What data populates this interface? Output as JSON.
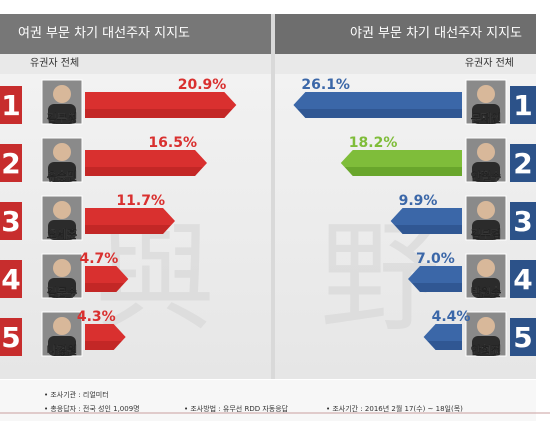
{
  "header": {
    "left_title": "여권 부문 차기 대선주자 지지도",
    "right_title": "야권 부문 차기 대선주자 지지도",
    "left_sub": "유권자 전체",
    "right_sub": "유권자 전체"
  },
  "watermark": {
    "left_char": "與",
    "right_char": "野"
  },
  "footer": {
    "line1": "• 조사기관 : 리얼미터",
    "line2a": "• 총응답자 : 전국 성인 1,009명",
    "line2b": "• 조사방법 : 유무선 RDD 자동응답",
    "line2c": "• 조사기간 : 2016년 2월 17(수) ~ 18일(목)"
  },
  "colors": {
    "ruling": "#d9302f",
    "ruling_dark": "#a81c1c",
    "opposition_blue": "#3b67a8",
    "opposition_blue_dark": "#24457a",
    "opposition_green": "#7fbd3a",
    "opposition_green_dark": "#4f8a1c",
    "rank_bg": "#c72d2d",
    "rank_bg_right": "#2c5289"
  },
  "chart_data": [
    {
      "type": "bar",
      "title": "여권 부문 차기 대선주자 지지도",
      "categories": [
        "김무성",
        "유승민",
        "오세훈",
        "김문수",
        "나경원"
      ],
      "ranks": [
        "1",
        "2",
        "3",
        "4",
        "5"
      ],
      "values": [
        20.9,
        16.5,
        11.7,
        4.7,
        4.3
      ],
      "labels": [
        "20.9%",
        "16.5%",
        "11.7%",
        "4.7%",
        "4.3%"
      ],
      "xlim": [
        0,
        30
      ]
    },
    {
      "type": "bar",
      "title": "야권 부문 차기 대선주자 지지도",
      "categories": [
        "문재인",
        "안철수",
        "김부겸",
        "박원순",
        "안희정"
      ],
      "ranks": [
        "1",
        "2",
        "3",
        "4",
        "5"
      ],
      "values": [
        26.1,
        18.2,
        9.9,
        7.0,
        4.4
      ],
      "labels": [
        "26.1%",
        "18.2%",
        "9.9%",
        "7.0%",
        "4.4%"
      ],
      "xlim": [
        0,
        30
      ]
    }
  ]
}
